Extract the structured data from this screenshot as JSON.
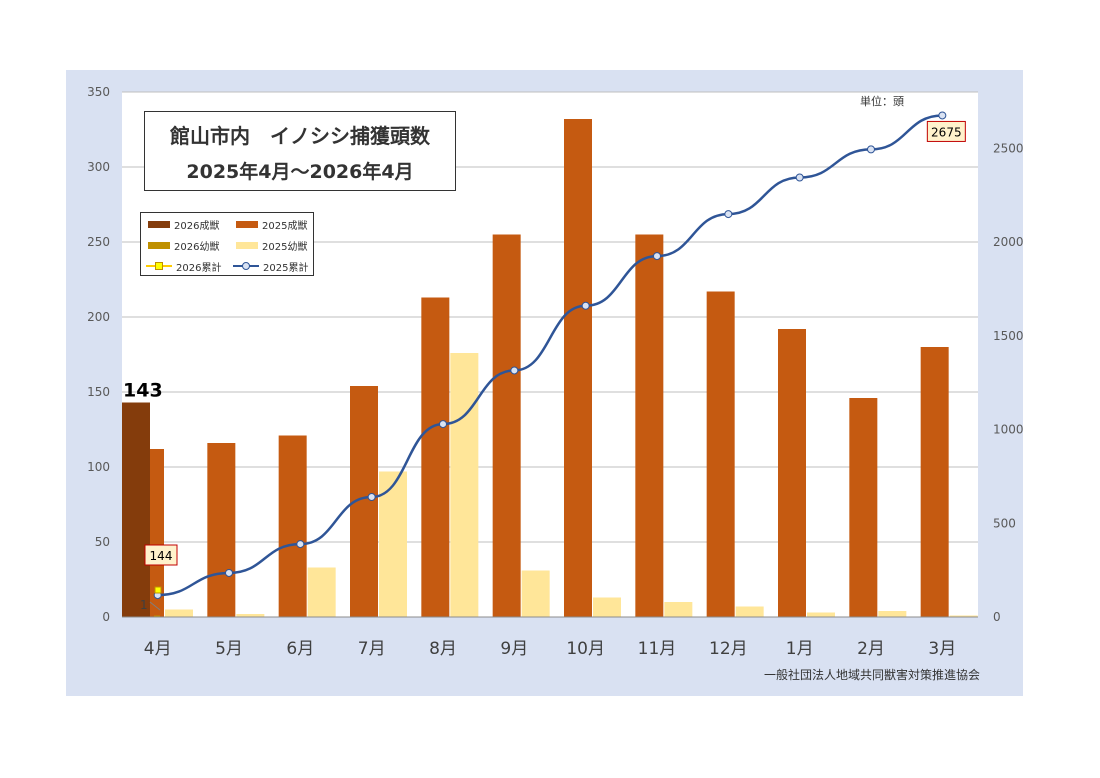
{
  "unit_label": "単位：頭",
  "credit": "一般社団法人地域共同獣害対策推進協会",
  "colors": {
    "frame_bg": "#d9e1f2",
    "s2026_adult": "#843c0c",
    "s2025_adult": "#c55a11",
    "s2026_juv": "#bf9000",
    "s2025_juv": "#ffe699",
    "s2026_cum": "#ffcc00",
    "s2025_cum": "#2f5597"
  },
  "legend": [
    {
      "label": "2026成獣",
      "kind": "bar",
      "color": "#843c0c"
    },
    {
      "label": "2025成獣",
      "kind": "bar",
      "color": "#c55a11"
    },
    {
      "label": "2026幼獣",
      "kind": "bar",
      "color": "#bf9000"
    },
    {
      "label": "2025幼獣",
      "kind": "bar",
      "color": "#ffe699"
    },
    {
      "label": "2026累計",
      "kind": "line",
      "color": "#ffcc00"
    },
    {
      "label": "2025累計",
      "kind": "line",
      "color": "#2f5597"
    }
  ],
  "chart_data": {
    "type": "bar",
    "title": "館山市内　イノシシ捕獲頭数",
    "subtitle": "2025年4月～2026年4月",
    "categories": [
      "4月",
      "5月",
      "6月",
      "7月",
      "8月",
      "9月",
      "10月",
      "11月",
      "12月",
      "1月",
      "2月",
      "3月"
    ],
    "ylim": [
      0,
      350
    ],
    "yticks": [
      "0",
      "50",
      "100",
      "150",
      "200",
      "250",
      "300",
      "350"
    ],
    "y2lim": [
      0,
      2800
    ],
    "y2ticks": [
      "0",
      "500",
      "1000",
      "1500",
      "2000",
      "2500"
    ],
    "grid": true,
    "legend_position": "top-left",
    "series": [
      {
        "name": "2026成獣",
        "type": "bar",
        "axis": "left",
        "values": [
          143,
          null,
          null,
          null,
          null,
          null,
          null,
          null,
          null,
          null,
          null,
          null
        ]
      },
      {
        "name": "2025成獣",
        "type": "bar",
        "axis": "left",
        "values": [
          112,
          116,
          121,
          154,
          213,
          255,
          332,
          255,
          217,
          192,
          146,
          180
        ]
      },
      {
        "name": "2026幼獣",
        "type": "bar",
        "axis": "left",
        "values": [
          1,
          null,
          null,
          null,
          null,
          null,
          null,
          null,
          null,
          null,
          null,
          null
        ]
      },
      {
        "name": "2025幼獣",
        "type": "bar",
        "axis": "left",
        "values": [
          5,
          2,
          33,
          97,
          176,
          31,
          13,
          10,
          7,
          3,
          4,
          1
        ]
      },
      {
        "name": "2026累計",
        "type": "line",
        "axis": "right",
        "values": [
          144,
          null,
          null,
          null,
          null,
          null,
          null,
          null,
          null,
          null,
          null,
          null
        ]
      },
      {
        "name": "2025累計",
        "type": "line",
        "axis": "right",
        "values": [
          117,
          235,
          389,
          640,
          1029,
          1315,
          1660,
          1925,
          2149,
          2344,
          2494,
          2675
        ]
      }
    ],
    "annotations": [
      {
        "text": "143",
        "series": "2026成獣",
        "index": 0
      },
      {
        "text": "144",
        "series": "2026累計",
        "index": 0
      },
      {
        "text": "1",
        "series": "2026幼獣",
        "index": 0
      },
      {
        "text": "2675",
        "series": "2025累計",
        "index": 11
      }
    ]
  }
}
